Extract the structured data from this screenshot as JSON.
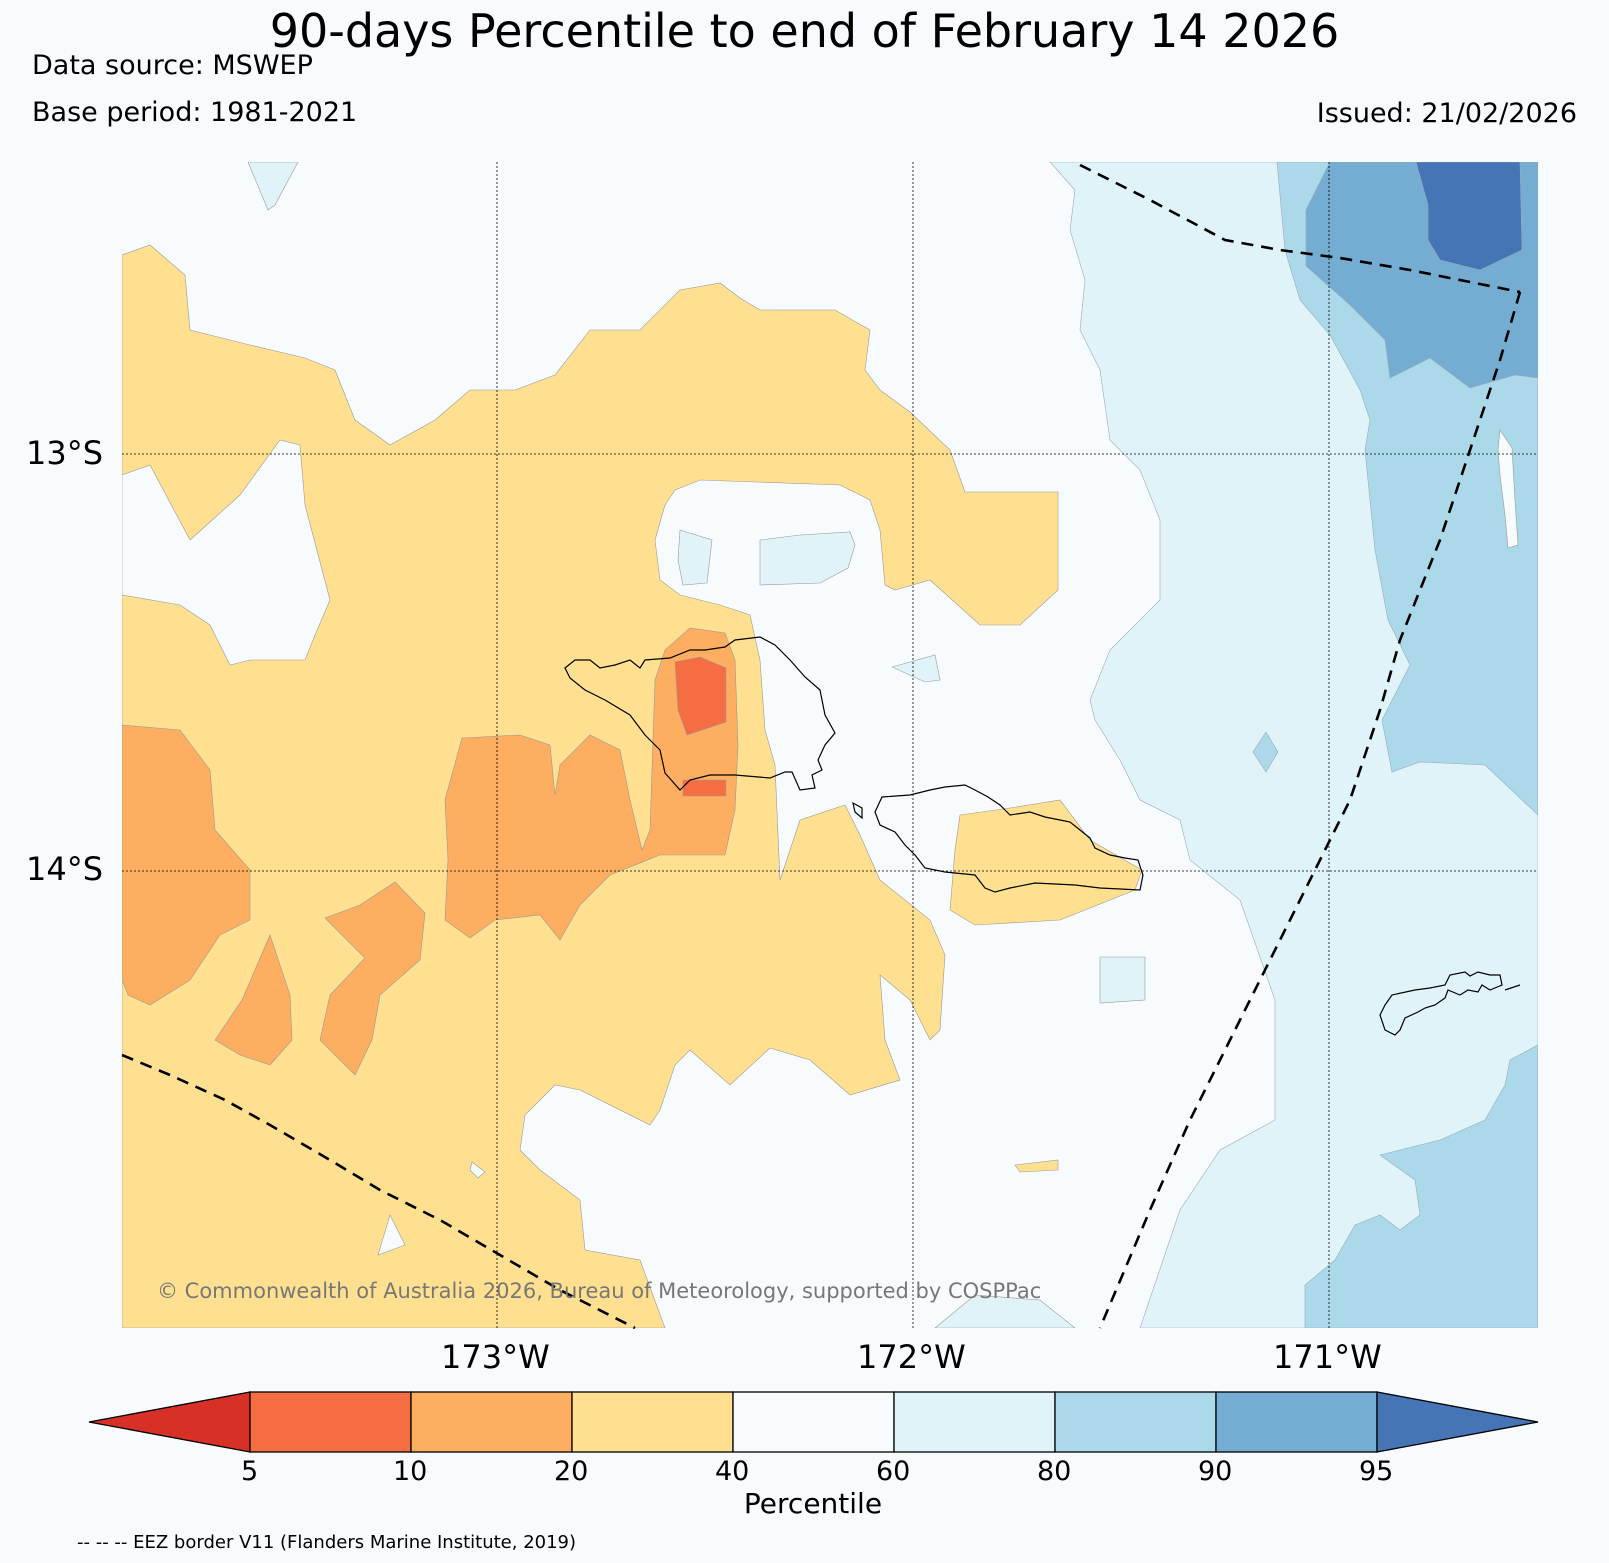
{
  "header": {
    "title": "90-days Percentile to end of February 14 2026",
    "data_source": "Data source: MSWEP",
    "base_period": "Base period: 1981-2021",
    "issued": "Issued: 21/02/2026"
  },
  "map": {
    "lat_labels": [
      "13°S",
      "14°S"
    ],
    "lon_labels": [
      "173°W",
      "172°W",
      "171°W"
    ],
    "copyright": "© Commonwealth of Australia 2026, Bureau of Meteorology, supported by COSPPac",
    "eez_note": "-- -- -- EEZ border V11 (Flanders Marine Institute, 2019)"
  },
  "legend": {
    "title": "Percentile",
    "ticks": [
      "5",
      "10",
      "20",
      "40",
      "60",
      "80",
      "90",
      "95"
    ],
    "colors": {
      "below_5": "#d73027",
      "p5_10": "#f46d43",
      "p10_20": "#fdae61",
      "p20_40": "#fee090",
      "p40_60": "#f7fbfd",
      "p60_80": "#e0f3f8",
      "p80_90": "#abd9e9",
      "p90_95": "#74add1",
      "above_95": "#4575b4"
    }
  }
}
